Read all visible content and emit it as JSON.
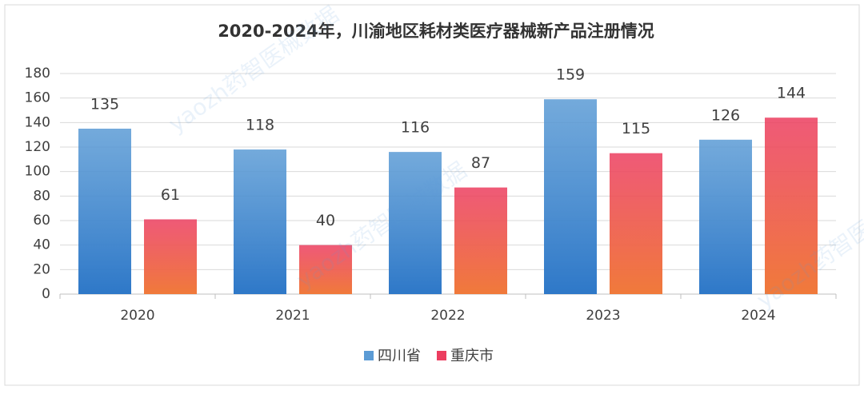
{
  "chart_data": {
    "type": "bar",
    "title": "2020-2024年，川渝地区耗材类医疗器械新产品注册情况",
    "watermark": "yaozh药智医械数据",
    "categories": [
      "2020",
      "2021",
      "2022",
      "2023",
      "2024"
    ],
    "series": [
      {
        "name": "四川省",
        "color": "#5b9bd5",
        "values": [
          135,
          118,
          116,
          159,
          126
        ]
      },
      {
        "name": "重庆市",
        "color": "#ec3d5f",
        "values": [
          61,
          40,
          87,
          115,
          144
        ]
      }
    ],
    "ylim": [
      0,
      180
    ],
    "yticks": [
      0,
      20,
      40,
      60,
      80,
      100,
      120,
      140,
      160,
      180
    ],
    "grid": true,
    "legend": "bottom"
  }
}
